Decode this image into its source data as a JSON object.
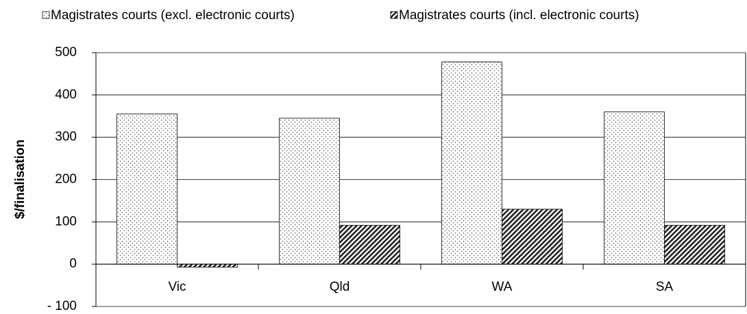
{
  "chart_data": {
    "type": "bar",
    "y_label": "$/finalisation",
    "categories": [
      "Vic",
      "Qld",
      "WA",
      "SA"
    ],
    "series": [
      {
        "name": "Magistrates courts (excl. electronic courts)",
        "color": "#000000",
        "pattern": "dots",
        "values": [
          355,
          345,
          478,
          360
        ]
      },
      {
        "name": "Magistrates courts (incl. electronic courts)",
        "color": "#000000",
        "pattern": "hatch",
        "values": [
          -7,
          92,
          130,
          92
        ]
      }
    ],
    "ylim": [
      -100,
      500
    ],
    "yticks": [
      {
        "value": -100,
        "label": "- 100"
      },
      0,
      100,
      200,
      300,
      400,
      500
    ],
    "grid": true,
    "legend": "top"
  }
}
